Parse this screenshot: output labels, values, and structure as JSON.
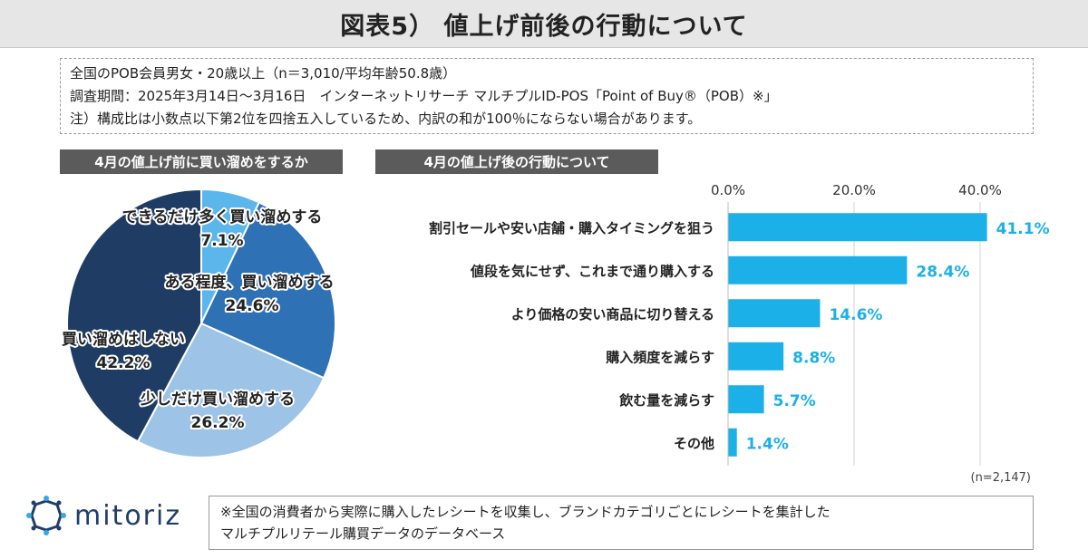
{
  "title": "図表5） 値上げ前後の行動について",
  "info": {
    "line1": "全国のPOB会員男女・20歳以上（n＝3,010/平均年齢50.8歳）",
    "line2": "調査期間：2025年3月14日～3月16日　インターネットリサーチ マルチプルID-POS「Point of Buy®（POB）※」",
    "line3": "注）構成比は小数点以下第2位を四捨五入しているため、内訳の和が100％にならない場合があります。"
  },
  "footnote": {
    "line1": "※全国の消費者から実際に購入したレシートを収集し、ブランドカテゴリごとにレシートを集計した",
    "line2": "マルチプルリテール購買データのデータベース"
  },
  "logo_text": "mitoriz",
  "colors": {
    "logo": "#1f3e6e",
    "bar": "#1cb0e8",
    "bar_label": "#1cb0e8"
  },
  "chart_data": [
    {
      "type": "pie",
      "title": "4月の値上げ前に買い溜めをするか",
      "slices": [
        {
          "label": "できるだけ多く買い溜めする",
          "value": 7.1,
          "value_label": "7.1%",
          "color": "#5bb6ec"
        },
        {
          "label": "ある程度、買い溜めする",
          "value": 24.6,
          "value_label": "24.6%",
          "color": "#2e71b5"
        },
        {
          "label": "少しだけ買い溜めする",
          "value": 26.2,
          "value_label": "26.2%",
          "color": "#9dc3e6"
        },
        {
          "label": "買い溜めはしない",
          "value": 42.2,
          "value_label": "42.2%",
          "color": "#1f3d64"
        }
      ]
    },
    {
      "type": "bar",
      "orientation": "horizontal",
      "title": "4月の値上げ後の行動について",
      "categories": [
        "割引セールや安い店舗・購入タイミングを狙う",
        "値段を気にせず、これまで通り購入する",
        "より価格の安い商品に切り替える",
        "購入頻度を減らす",
        "飲む量を減らす",
        "その他"
      ],
      "values": [
        41.1,
        28.4,
        14.6,
        8.8,
        5.7,
        1.4
      ],
      "value_labels": [
        "41.1%",
        "28.4%",
        "14.6%",
        "8.8%",
        "5.7%",
        "1.4%"
      ],
      "xlim": [
        0,
        40
      ],
      "ticks": [
        0,
        20,
        40
      ],
      "tick_labels": [
        "0.0%",
        "20.0%",
        "40.0%"
      ],
      "note": "(n=2,147)",
      "grid": true
    }
  ]
}
